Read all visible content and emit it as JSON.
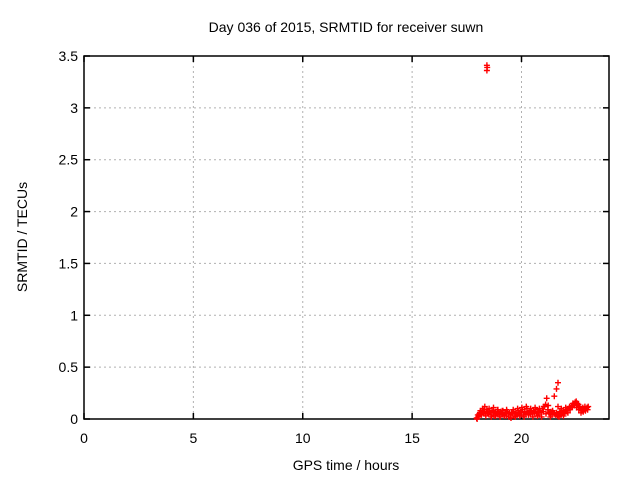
{
  "title": "Day 036 of 2015, SRMTID for receiver suwn",
  "colors": {
    "marker": "#ff0000",
    "grid": "#b0b0b0",
    "border": "#000000",
    "background": "#ffffff",
    "text": "#000000"
  },
  "chart_data": {
    "type": "scatter",
    "title": "Day 036 of 2015, SRMTID for receiver suwn",
    "xlabel": "GPS time / hours",
    "ylabel": "SRMTID / TECUs",
    "xlim": [
      0,
      24
    ],
    "ylim": [
      0,
      3.5
    ],
    "xticks": [
      {
        "v": 0,
        "label": "0"
      },
      {
        "v": 5,
        "label": "5"
      },
      {
        "v": 10,
        "label": "10"
      },
      {
        "v": 15,
        "label": "15"
      },
      {
        "v": 20,
        "label": "20"
      }
    ],
    "yticks": [
      {
        "v": 0,
        "label": "0"
      },
      {
        "v": 0.5,
        "label": "0.5"
      },
      {
        "v": 1,
        "label": "1"
      },
      {
        "v": 1.5,
        "label": "1.5"
      },
      {
        "v": 2,
        "label": "2"
      },
      {
        "v": 2.5,
        "label": "2.5"
      },
      {
        "v": 3,
        "label": "3"
      },
      {
        "v": 3.5,
        "label": "3.5"
      }
    ],
    "grid": true,
    "legend": "none",
    "marker": {
      "shape": "plus",
      "color": "#ff0000",
      "size": 6
    },
    "annotations": {
      "outlier": {
        "x": 18.4,
        "y": 3.39,
        "note": "isolated high spike"
      },
      "secondary_spikes": [
        [
          21.5,
          0.22
        ],
        [
          21.6,
          0.29
        ],
        [
          21.67,
          0.35
        ]
      ],
      "main_cluster": {
        "x_range": [
          17.95,
          23.05
        ],
        "y_range": [
          0,
          0.2
        ],
        "note": "dense low-amplitude band"
      }
    },
    "series": [
      {
        "name": "SRMTID",
        "points": [
          [
            18.42,
            3.41
          ],
          [
            18.43,
            3.39
          ],
          [
            18.42,
            3.36
          ],
          [
            21.5,
            0.22
          ],
          [
            21.6,
            0.29
          ],
          [
            21.67,
            0.35
          ],
          [
            17.95,
            0.01
          ],
          [
            18.0,
            0.04
          ],
          [
            18.05,
            0.03
          ],
          [
            18.1,
            0.06
          ],
          [
            18.15,
            0.05
          ],
          [
            18.2,
            0.08
          ],
          [
            18.25,
            0.06
          ],
          [
            18.3,
            0.09
          ],
          [
            18.35,
            0.05
          ],
          [
            18.4,
            0.07
          ],
          [
            18.45,
            0.06
          ],
          [
            17.97,
            0.0
          ],
          [
            18.02,
            0.02
          ],
          [
            18.07,
            0.05
          ],
          [
            18.12,
            0.08
          ],
          [
            18.17,
            0.04
          ],
          [
            18.22,
            0.1
          ],
          [
            18.27,
            0.07
          ],
          [
            18.32,
            0.12
          ],
          [
            18.37,
            0.03
          ],
          [
            18.42,
            0.09
          ],
          [
            18.5,
            0.05
          ],
          [
            18.55,
            0.07
          ],
          [
            18.6,
            0.04
          ],
          [
            18.65,
            0.08
          ],
          [
            18.7,
            0.06
          ],
          [
            18.75,
            0.03
          ],
          [
            18.8,
            0.07
          ],
          [
            18.85,
            0.05
          ],
          [
            18.9,
            0.09
          ],
          [
            18.95,
            0.06
          ],
          [
            19.0,
            0.04
          ],
          [
            19.05,
            0.07
          ],
          [
            19.1,
            0.05
          ],
          [
            19.15,
            0.08
          ],
          [
            19.2,
            0.04
          ],
          [
            19.25,
            0.06
          ],
          [
            19.3,
            0.03
          ],
          [
            19.35,
            0.07
          ],
          [
            19.4,
            0.05
          ],
          [
            19.45,
            0.06
          ],
          [
            18.52,
            0.1
          ],
          [
            18.62,
            0.02
          ],
          [
            18.72,
            0.11
          ],
          [
            18.82,
            0.03
          ],
          [
            18.92,
            0.09
          ],
          [
            19.02,
            0.02
          ],
          [
            19.12,
            0.08
          ],
          [
            19.22,
            0.03
          ],
          [
            19.32,
            0.09
          ],
          [
            19.42,
            0.02
          ],
          [
            19.5,
            0.04
          ],
          [
            19.55,
            0.06
          ],
          [
            19.6,
            0.05
          ],
          [
            19.65,
            0.07
          ],
          [
            19.7,
            0.03
          ],
          [
            19.75,
            0.06
          ],
          [
            19.8,
            0.04
          ],
          [
            19.85,
            0.08
          ],
          [
            19.9,
            0.05
          ],
          [
            19.95,
            0.07
          ],
          [
            20.0,
            0.06
          ],
          [
            20.05,
            0.09
          ],
          [
            20.1,
            0.04
          ],
          [
            20.15,
            0.07
          ],
          [
            20.2,
            0.05
          ],
          [
            20.25,
            0.1
          ],
          [
            20.3,
            0.06
          ],
          [
            20.35,
            0.08
          ],
          [
            20.4,
            0.05
          ],
          [
            20.45,
            0.07
          ],
          [
            19.52,
            0.01
          ],
          [
            19.62,
            0.09
          ],
          [
            19.72,
            0.02
          ],
          [
            19.82,
            0.1
          ],
          [
            19.92,
            0.03
          ],
          [
            20.02,
            0.11
          ],
          [
            20.12,
            0.02
          ],
          [
            20.22,
            0.12
          ],
          [
            20.32,
            0.04
          ],
          [
            20.42,
            0.1
          ],
          [
            20.5,
            0.05
          ],
          [
            20.55,
            0.08
          ],
          [
            20.6,
            0.06
          ],
          [
            20.65,
            0.09
          ],
          [
            20.7,
            0.05
          ],
          [
            20.75,
            0.07
          ],
          [
            20.8,
            0.04
          ],
          [
            20.85,
            0.08
          ],
          [
            20.9,
            0.06
          ],
          [
            20.95,
            0.1
          ],
          [
            21.0,
            0.07
          ],
          [
            21.05,
            0.12
          ],
          [
            21.1,
            0.14
          ],
          [
            21.15,
            0.2
          ],
          [
            21.2,
            0.09
          ],
          [
            21.25,
            0.06
          ],
          [
            21.3,
            0.05
          ],
          [
            21.35,
            0.07
          ],
          [
            21.4,
            0.04
          ],
          [
            21.45,
            0.06
          ],
          [
            20.52,
            0.02
          ],
          [
            20.62,
            0.11
          ],
          [
            20.72,
            0.03
          ],
          [
            20.82,
            0.1
          ],
          [
            20.92,
            0.02
          ],
          [
            21.02,
            0.12
          ],
          [
            21.12,
            0.05
          ],
          [
            21.22,
            0.13
          ],
          [
            21.32,
            0.02
          ],
          [
            21.42,
            0.08
          ],
          [
            21.5,
            0.05
          ],
          [
            21.55,
            0.04
          ],
          [
            21.6,
            0.06
          ],
          [
            21.65,
            0.03
          ],
          [
            21.7,
            0.05
          ],
          [
            21.75,
            0.07
          ],
          [
            21.8,
            0.04
          ],
          [
            21.85,
            0.06
          ],
          [
            21.9,
            0.08
          ],
          [
            21.95,
            0.05
          ],
          [
            22.0,
            0.07
          ],
          [
            22.05,
            0.09
          ],
          [
            21.67,
            0.12
          ],
          [
            21.72,
            0.02
          ],
          [
            21.82,
            0.1
          ],
          [
            21.92,
            0.03
          ],
          [
            22.02,
            0.11
          ],
          [
            22.1,
            0.08
          ],
          [
            22.15,
            0.1
          ],
          [
            22.2,
            0.12
          ],
          [
            22.25,
            0.11
          ],
          [
            22.3,
            0.13
          ],
          [
            22.35,
            0.15
          ],
          [
            22.4,
            0.14
          ],
          [
            22.45,
            0.16
          ],
          [
            22.5,
            0.17
          ],
          [
            22.55,
            0.15
          ],
          [
            22.6,
            0.14
          ],
          [
            22.65,
            0.12
          ],
          [
            22.12,
            0.06
          ],
          [
            22.22,
            0.09
          ],
          [
            22.32,
            0.12
          ],
          [
            22.42,
            0.13
          ],
          [
            22.52,
            0.11
          ],
          [
            22.62,
            0.09
          ],
          [
            22.7,
            0.1
          ],
          [
            22.75,
            0.08
          ],
          [
            22.8,
            0.11
          ],
          [
            22.85,
            0.09
          ],
          [
            22.9,
            0.12
          ],
          [
            22.95,
            0.1
          ],
          [
            23.0,
            0.11
          ],
          [
            23.05,
            0.12
          ],
          [
            22.72,
            0.06
          ],
          [
            22.82,
            0.07
          ],
          [
            22.92,
            0.08
          ],
          [
            23.02,
            0.09
          ]
        ]
      }
    ]
  }
}
